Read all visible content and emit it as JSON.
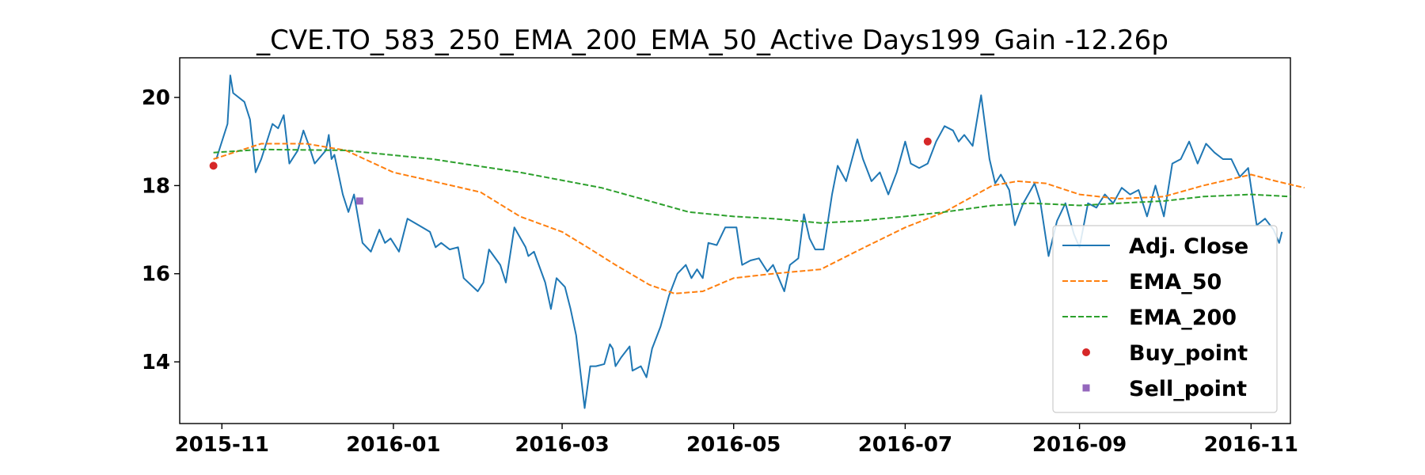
{
  "chart_data": {
    "type": "line",
    "title": "_CVE.TO_583_250_EMA_200_EMA_50_Active Days199_Gain -12.26p",
    "xlabel": "",
    "ylabel": "",
    "x_type": "date",
    "xlim": [
      "2015-10-17",
      "2016-11-15"
    ],
    "ylim": [
      12.6,
      20.9
    ],
    "x_ticks": [
      "2015-11-01",
      "2016-01-01",
      "2016-03-01",
      "2016-05-01",
      "2016-07-01",
      "2016-09-01",
      "2016-11-01"
    ],
    "x_tick_labels": [
      "2015-11",
      "2016-01",
      "2016-03",
      "2016-05",
      "2016-07",
      "2016-09",
      "2016-11"
    ],
    "y_ticks": [
      14,
      16,
      18,
      20
    ],
    "y_tick_labels": [
      "14",
      "16",
      "18",
      "20"
    ],
    "grid": false,
    "legend_position": "lower-right",
    "series": [
      {
        "name": "Adj. Close",
        "color": "#1f77b4",
        "style": "solid",
        "points": [
          [
            "2015-10-30",
            18.6
          ],
          [
            "2015-11-03",
            19.4
          ],
          [
            "2015-11-04",
            20.5
          ],
          [
            "2015-11-05",
            20.1
          ],
          [
            "2015-11-09",
            19.9
          ],
          [
            "2015-11-11",
            19.5
          ],
          [
            "2015-11-13",
            18.3
          ],
          [
            "2015-11-15",
            18.6
          ],
          [
            "2015-11-19",
            19.4
          ],
          [
            "2015-11-21",
            19.3
          ],
          [
            "2015-11-23",
            19.6
          ],
          [
            "2015-11-25",
            18.5
          ],
          [
            "2015-11-28",
            18.8
          ],
          [
            "2015-11-30",
            19.25
          ],
          [
            "2015-12-02",
            18.9
          ],
          [
            "2015-12-04",
            18.5
          ],
          [
            "2015-12-08",
            18.8
          ],
          [
            "2015-12-09",
            19.15
          ],
          [
            "2015-12-10",
            18.6
          ],
          [
            "2015-12-11",
            18.7
          ],
          [
            "2015-12-14",
            17.8
          ],
          [
            "2015-12-16",
            17.4
          ],
          [
            "2015-12-18",
            17.8
          ],
          [
            "2015-12-21",
            16.7
          ],
          [
            "2015-12-24",
            16.5
          ],
          [
            "2015-12-27",
            17.0
          ],
          [
            "2015-12-29",
            16.7
          ],
          [
            "2015-12-31",
            16.8
          ],
          [
            "2016-01-03",
            16.5
          ],
          [
            "2016-01-06",
            17.25
          ],
          [
            "2016-01-10",
            17.1
          ],
          [
            "2016-01-14",
            16.95
          ],
          [
            "2016-01-16",
            16.6
          ],
          [
            "2016-01-18",
            16.7
          ],
          [
            "2016-01-21",
            16.55
          ],
          [
            "2016-01-24",
            16.6
          ],
          [
            "2016-01-26",
            15.9
          ],
          [
            "2016-01-31",
            15.6
          ],
          [
            "2016-02-02",
            15.8
          ],
          [
            "2016-02-04",
            16.55
          ],
          [
            "2016-02-08",
            16.2
          ],
          [
            "2016-02-10",
            15.8
          ],
          [
            "2016-02-13",
            17.05
          ],
          [
            "2016-02-17",
            16.6
          ],
          [
            "2016-02-18",
            16.4
          ],
          [
            "2016-02-20",
            16.5
          ],
          [
            "2016-02-24",
            15.8
          ],
          [
            "2016-02-26",
            15.2
          ],
          [
            "2016-02-28",
            15.9
          ],
          [
            "2016-03-02",
            15.7
          ],
          [
            "2016-03-04",
            15.2
          ],
          [
            "2016-03-06",
            14.6
          ],
          [
            "2016-03-09",
            12.95
          ],
          [
            "2016-03-11",
            13.9
          ],
          [
            "2016-03-13",
            13.9
          ],
          [
            "2016-03-16",
            13.95
          ],
          [
            "2016-03-18",
            14.4
          ],
          [
            "2016-03-19",
            14.3
          ],
          [
            "2016-03-20",
            13.9
          ],
          [
            "2016-03-22",
            14.1
          ],
          [
            "2016-03-25",
            14.35
          ],
          [
            "2016-03-26",
            13.8
          ],
          [
            "2016-03-29",
            13.9
          ],
          [
            "2016-03-31",
            13.65
          ],
          [
            "2016-04-02",
            14.3
          ],
          [
            "2016-04-05",
            14.8
          ],
          [
            "2016-04-08",
            15.5
          ],
          [
            "2016-04-11",
            16.0
          ],
          [
            "2016-04-14",
            16.2
          ],
          [
            "2016-04-16",
            15.9
          ],
          [
            "2016-04-18",
            16.1
          ],
          [
            "2016-04-20",
            15.9
          ],
          [
            "2016-04-22",
            16.7
          ],
          [
            "2016-04-25",
            16.65
          ],
          [
            "2016-04-28",
            17.05
          ],
          [
            "2016-05-02",
            17.05
          ],
          [
            "2016-05-04",
            16.2
          ],
          [
            "2016-05-07",
            16.3
          ],
          [
            "2016-05-10",
            16.35
          ],
          [
            "2016-05-13",
            16.05
          ],
          [
            "2016-05-15",
            16.2
          ],
          [
            "2016-05-17",
            15.9
          ],
          [
            "2016-05-19",
            15.6
          ],
          [
            "2016-05-21",
            16.2
          ],
          [
            "2016-05-24",
            16.35
          ],
          [
            "2016-05-26",
            17.35
          ],
          [
            "2016-05-28",
            16.8
          ],
          [
            "2016-05-30",
            16.55
          ],
          [
            "2016-06-02",
            16.55
          ],
          [
            "2016-06-05",
            17.8
          ],
          [
            "2016-06-07",
            18.45
          ],
          [
            "2016-06-10",
            18.1
          ],
          [
            "2016-06-14",
            19.05
          ],
          [
            "2016-06-16",
            18.6
          ],
          [
            "2016-06-19",
            18.1
          ],
          [
            "2016-06-22",
            18.3
          ],
          [
            "2016-06-25",
            17.8
          ],
          [
            "2016-06-28",
            18.3
          ],
          [
            "2016-07-01",
            19.0
          ],
          [
            "2016-07-03",
            18.5
          ],
          [
            "2016-07-06",
            18.4
          ],
          [
            "2016-07-09",
            18.5
          ],
          [
            "2016-07-12",
            19.0
          ],
          [
            "2016-07-15",
            19.35
          ],
          [
            "2016-07-18",
            19.25
          ],
          [
            "2016-07-20",
            19.0
          ],
          [
            "2016-07-22",
            19.15
          ],
          [
            "2016-07-25",
            18.9
          ],
          [
            "2016-07-28",
            20.05
          ],
          [
            "2016-07-31",
            18.6
          ],
          [
            "2016-08-02",
            18.05
          ],
          [
            "2016-08-04",
            18.25
          ],
          [
            "2016-08-07",
            17.9
          ],
          [
            "2016-08-09",
            17.1
          ],
          [
            "2016-08-12",
            17.6
          ],
          [
            "2016-08-16",
            18.05
          ],
          [
            "2016-08-18",
            17.65
          ],
          [
            "2016-08-21",
            16.4
          ],
          [
            "2016-08-24",
            17.2
          ],
          [
            "2016-08-27",
            17.6
          ],
          [
            "2016-08-30",
            16.9
          ],
          [
            "2016-09-01",
            16.6
          ],
          [
            "2016-09-04",
            17.6
          ],
          [
            "2016-09-07",
            17.5
          ],
          [
            "2016-09-10",
            17.8
          ],
          [
            "2016-09-13",
            17.6
          ],
          [
            "2016-09-16",
            17.95
          ],
          [
            "2016-09-19",
            17.8
          ],
          [
            "2016-09-22",
            17.9
          ],
          [
            "2016-09-25",
            17.3
          ],
          [
            "2016-09-28",
            18.0
          ],
          [
            "2016-10-01",
            17.3
          ],
          [
            "2016-10-04",
            18.5
          ],
          [
            "2016-10-07",
            18.6
          ],
          [
            "2016-10-10",
            19.0
          ],
          [
            "2016-10-13",
            18.5
          ],
          [
            "2016-10-16",
            18.95
          ],
          [
            "2016-10-19",
            18.75
          ],
          [
            "2016-10-22",
            18.6
          ],
          [
            "2016-10-25",
            18.6
          ],
          [
            "2016-10-28",
            18.2
          ],
          [
            "2016-10-31",
            18.4
          ],
          [
            "2016-11-03",
            17.1
          ],
          [
            "2016-11-06",
            17.25
          ],
          [
            "2016-11-09",
            17.0
          ],
          [
            "2016-11-11",
            16.7
          ],
          [
            "2016-11-12",
            16.95
          ]
        ]
      },
      {
        "name": "EMA_50",
        "color": "#ff7f0e",
        "style": "dashed",
        "points": [
          [
            "2015-10-29",
            18.6
          ],
          [
            "2015-11-15",
            18.95
          ],
          [
            "2015-12-01",
            18.95
          ],
          [
            "2015-12-15",
            18.8
          ],
          [
            "2016-01-01",
            18.3
          ],
          [
            "2016-01-15",
            18.1
          ],
          [
            "2016-02-01",
            17.85
          ],
          [
            "2016-02-15",
            17.3
          ],
          [
            "2016-03-01",
            16.95
          ],
          [
            "2016-03-10",
            16.6
          ],
          [
            "2016-03-20",
            16.2
          ],
          [
            "2016-04-01",
            15.75
          ],
          [
            "2016-04-10",
            15.55
          ],
          [
            "2016-04-20",
            15.6
          ],
          [
            "2016-05-01",
            15.9
          ],
          [
            "2016-05-15",
            16.0
          ],
          [
            "2016-06-01",
            16.1
          ],
          [
            "2016-06-15",
            16.55
          ],
          [
            "2016-07-01",
            17.05
          ],
          [
            "2016-07-15",
            17.4
          ],
          [
            "2016-08-01",
            18.0
          ],
          [
            "2016-08-10",
            18.1
          ],
          [
            "2016-08-20",
            18.05
          ],
          [
            "2016-09-01",
            17.8
          ],
          [
            "2016-09-15",
            17.7
          ],
          [
            "2016-10-01",
            17.75
          ],
          [
            "2016-10-15",
            18.0
          ],
          [
            "2016-11-01",
            18.25
          ],
          [
            "2016-11-10",
            18.1
          ],
          [
            "2016-11-20",
            17.95
          ]
        ]
      },
      {
        "name": "EMA_200",
        "color": "#2ca02c",
        "style": "dashed",
        "points": [
          [
            "2015-10-29",
            18.75
          ],
          [
            "2015-11-15",
            18.82
          ],
          [
            "2015-12-15",
            18.8
          ],
          [
            "2016-01-15",
            18.6
          ],
          [
            "2016-02-15",
            18.3
          ],
          [
            "2016-03-15",
            17.95
          ],
          [
            "2016-04-01",
            17.65
          ],
          [
            "2016-04-15",
            17.4
          ],
          [
            "2016-05-01",
            17.3
          ],
          [
            "2016-05-15",
            17.25
          ],
          [
            "2016-06-01",
            17.15
          ],
          [
            "2016-06-15",
            17.2
          ],
          [
            "2016-07-01",
            17.3
          ],
          [
            "2016-07-15",
            17.4
          ],
          [
            "2016-08-01",
            17.55
          ],
          [
            "2016-08-15",
            17.6
          ],
          [
            "2016-09-01",
            17.55
          ],
          [
            "2016-09-15",
            17.6
          ],
          [
            "2016-10-01",
            17.65
          ],
          [
            "2016-10-15",
            17.75
          ],
          [
            "2016-11-01",
            17.8
          ],
          [
            "2016-11-15",
            17.75
          ]
        ]
      }
    ],
    "markers": [
      {
        "name": "Buy_point",
        "color": "#d62728",
        "shape": "circle",
        "points": [
          [
            "2015-10-29",
            18.45
          ],
          [
            "2016-07-09",
            19.0
          ]
        ]
      },
      {
        "name": "Sell_point",
        "color": "#9467bd",
        "shape": "square",
        "points": [
          [
            "2015-12-20",
            17.65
          ]
        ]
      }
    ]
  }
}
